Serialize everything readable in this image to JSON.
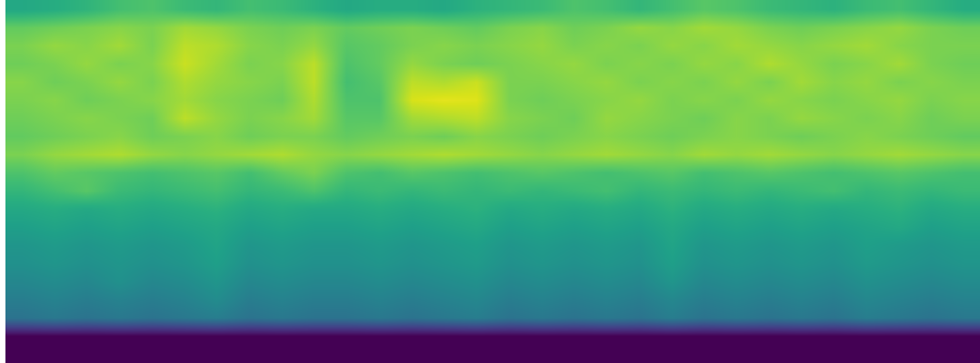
{
  "chart_data": {
    "type": "heatmap",
    "tick_labels": false,
    "color": "viridis",
    "color_range": [
      0,
      1
    ],
    "cells": [
      [
        0.6,
        0.62,
        0.65,
        0.7,
        0.72,
        0.68,
        0.66,
        0.7,
        0.68,
        0.64,
        0.6,
        0.62,
        0.62,
        0.6,
        0.64,
        0.66,
        0.68,
        0.72,
        0.7,
        0.66,
        0.7,
        0.74,
        0.72,
        0.68,
        0.66,
        0.64,
        0.68,
        0.7,
        0.66,
        0.62
      ],
      [
        0.76,
        0.78,
        0.8,
        0.82,
        0.8,
        0.86,
        0.84,
        0.8,
        0.78,
        0.8,
        0.76,
        0.78,
        0.8,
        0.78,
        0.76,
        0.8,
        0.82,
        0.78,
        0.8,
        0.84,
        0.82,
        0.86,
        0.84,
        0.8,
        0.78,
        0.8,
        0.82,
        0.84,
        0.8,
        0.78
      ],
      [
        0.8,
        0.84,
        0.82,
        0.86,
        0.8,
        0.9,
        0.88,
        0.82,
        0.8,
        0.84,
        0.74,
        0.76,
        0.8,
        0.82,
        0.8,
        0.82,
        0.84,
        0.8,
        0.82,
        0.8,
        0.84,
        0.82,
        0.86,
        0.84,
        0.82,
        0.84,
        0.86,
        0.82,
        0.8,
        0.8
      ],
      [
        0.78,
        0.8,
        0.84,
        0.8,
        0.82,
        0.92,
        0.86,
        0.8,
        0.82,
        0.9,
        0.72,
        0.76,
        0.84,
        0.8,
        0.78,
        0.8,
        0.82,
        0.84,
        0.8,
        0.82,
        0.8,
        0.84,
        0.82,
        0.88,
        0.84,
        0.8,
        0.82,
        0.86,
        0.8,
        0.78
      ],
      [
        0.82,
        0.78,
        0.8,
        0.84,
        0.8,
        0.88,
        0.84,
        0.82,
        0.8,
        0.9,
        0.7,
        0.74,
        0.9,
        0.88,
        0.92,
        0.8,
        0.8,
        0.82,
        0.84,
        0.8,
        0.82,
        0.8,
        0.84,
        0.8,
        0.86,
        0.82,
        0.84,
        0.8,
        0.82,
        0.8
      ],
      [
        0.8,
        0.82,
        0.78,
        0.8,
        0.82,
        0.86,
        0.82,
        0.8,
        0.78,
        0.88,
        0.72,
        0.72,
        0.94,
        0.96,
        0.95,
        0.8,
        0.78,
        0.8,
        0.82,
        0.84,
        0.8,
        0.82,
        0.8,
        0.84,
        0.82,
        0.8,
        0.82,
        0.84,
        0.8,
        0.82
      ],
      [
        0.78,
        0.8,
        0.82,
        0.8,
        0.78,
        0.9,
        0.84,
        0.8,
        0.82,
        0.86,
        0.74,
        0.74,
        0.86,
        0.88,
        0.9,
        0.82,
        0.8,
        0.78,
        0.84,
        0.82,
        0.8,
        0.78,
        0.82,
        0.8,
        0.84,
        0.82,
        0.8,
        0.82,
        0.78,
        0.8
      ],
      [
        0.76,
        0.78,
        0.8,
        0.82,
        0.78,
        0.8,
        0.82,
        0.78,
        0.8,
        0.8,
        0.76,
        0.78,
        0.8,
        0.78,
        0.82,
        0.8,
        0.78,
        0.8,
        0.82,
        0.8,
        0.78,
        0.8,
        0.82,
        0.8,
        0.78,
        0.8,
        0.82,
        0.8,
        0.78,
        0.76
      ],
      [
        0.8,
        0.84,
        0.86,
        0.88,
        0.84,
        0.82,
        0.84,
        0.86,
        0.88,
        0.84,
        0.82,
        0.84,
        0.86,
        0.88,
        0.86,
        0.84,
        0.82,
        0.84,
        0.86,
        0.84,
        0.82,
        0.86,
        0.84,
        0.86,
        0.84,
        0.82,
        0.84,
        0.86,
        0.84,
        0.82
      ],
      [
        0.72,
        0.76,
        0.74,
        0.72,
        0.7,
        0.72,
        0.74,
        0.7,
        0.76,
        0.8,
        0.72,
        0.7,
        0.74,
        0.72,
        0.7,
        0.72,
        0.74,
        0.72,
        0.7,
        0.72,
        0.74,
        0.7,
        0.72,
        0.74,
        0.72,
        0.7,
        0.72,
        0.74,
        0.72,
        0.7
      ],
      [
        0.66,
        0.7,
        0.74,
        0.68,
        0.66,
        0.68,
        0.7,
        0.66,
        0.68,
        0.72,
        0.66,
        0.68,
        0.66,
        0.68,
        0.66,
        0.68,
        0.66,
        0.68,
        0.7,
        0.66,
        0.68,
        0.66,
        0.68,
        0.66,
        0.68,
        0.7,
        0.66,
        0.68,
        0.66,
        0.68
      ],
      [
        0.6,
        0.62,
        0.6,
        0.62,
        0.6,
        0.62,
        0.64,
        0.6,
        0.62,
        0.6,
        0.6,
        0.62,
        0.6,
        0.62,
        0.64,
        0.6,
        0.62,
        0.6,
        0.62,
        0.6,
        0.64,
        0.6,
        0.62,
        0.6,
        0.62,
        0.6,
        0.62,
        0.64,
        0.6,
        0.62
      ],
      [
        0.56,
        0.58,
        0.56,
        0.58,
        0.56,
        0.58,
        0.6,
        0.56,
        0.58,
        0.56,
        0.56,
        0.58,
        0.56,
        0.58,
        0.6,
        0.56,
        0.58,
        0.56,
        0.58,
        0.56,
        0.6,
        0.56,
        0.58,
        0.56,
        0.58,
        0.56,
        0.58,
        0.6,
        0.56,
        0.58
      ],
      [
        0.52,
        0.54,
        0.52,
        0.54,
        0.52,
        0.54,
        0.58,
        0.52,
        0.54,
        0.52,
        0.52,
        0.54,
        0.52,
        0.54,
        0.56,
        0.52,
        0.54,
        0.52,
        0.54,
        0.52,
        0.58,
        0.52,
        0.54,
        0.52,
        0.54,
        0.52,
        0.56,
        0.54,
        0.52,
        0.54
      ],
      [
        0.5,
        0.52,
        0.5,
        0.52,
        0.5,
        0.52,
        0.56,
        0.5,
        0.52,
        0.5,
        0.5,
        0.52,
        0.5,
        0.52,
        0.54,
        0.5,
        0.52,
        0.5,
        0.52,
        0.5,
        0.56,
        0.5,
        0.52,
        0.5,
        0.52,
        0.5,
        0.54,
        0.52,
        0.5,
        0.52
      ],
      [
        0.46,
        0.48,
        0.46,
        0.5,
        0.46,
        0.48,
        0.52,
        0.46,
        0.48,
        0.46,
        0.46,
        0.48,
        0.46,
        0.48,
        0.5,
        0.46,
        0.48,
        0.46,
        0.48,
        0.46,
        0.52,
        0.46,
        0.48,
        0.46,
        0.48,
        0.46,
        0.5,
        0.48,
        0.46,
        0.48
      ],
      [
        0.42,
        0.44,
        0.42,
        0.44,
        0.42,
        0.44,
        0.48,
        0.42,
        0.44,
        0.42,
        0.42,
        0.44,
        0.42,
        0.44,
        0.46,
        0.42,
        0.44,
        0.42,
        0.44,
        0.42,
        0.46,
        0.42,
        0.44,
        0.42,
        0.44,
        0.42,
        0.46,
        0.44,
        0.42,
        0.44
      ],
      [
        0.38,
        0.4,
        0.38,
        0.4,
        0.38,
        0.4,
        0.42,
        0.38,
        0.4,
        0.38,
        0.38,
        0.4,
        0.38,
        0.4,
        0.42,
        0.38,
        0.4,
        0.38,
        0.4,
        0.38,
        0.42,
        0.38,
        0.4,
        0.38,
        0.4,
        0.38,
        0.42,
        0.4,
        0.38,
        0.4
      ],
      [
        0,
        0,
        0,
        0,
        0,
        0,
        0,
        0,
        0,
        0,
        0,
        0,
        0,
        0,
        0,
        0,
        0,
        0,
        0,
        0,
        0,
        0,
        0,
        0,
        0,
        0,
        0,
        0,
        0,
        0
      ],
      [
        0,
        0,
        0,
        0,
        0,
        0,
        0,
        0,
        0,
        0,
        0,
        0,
        0,
        0,
        0,
        0,
        0,
        0,
        0,
        0,
        0,
        0,
        0,
        0,
        0,
        0,
        0,
        0,
        0,
        0
      ]
    ]
  }
}
